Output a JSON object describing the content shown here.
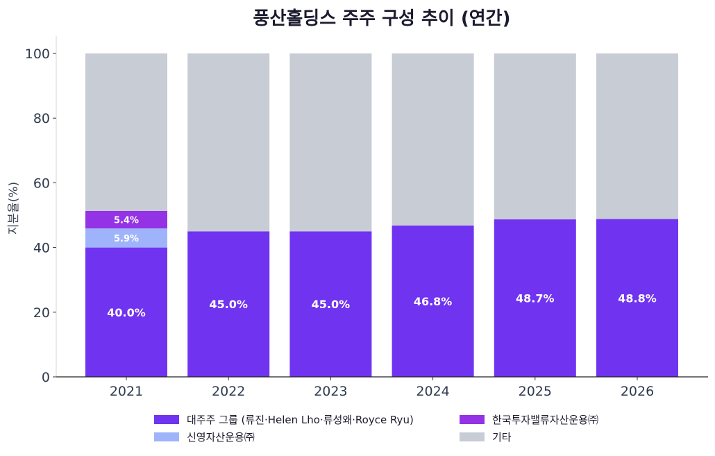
{
  "chart_data": {
    "type": "bar",
    "stacked": true,
    "title": "풍산홀딩스 주주 구성 추이 (연간)",
    "xlabel": "",
    "ylabel": "지분율(%)",
    "categories": [
      "2021",
      "2022",
      "2023",
      "2024",
      "2025",
      "2026"
    ],
    "ylim": [
      0,
      100
    ],
    "yticks": [
      0,
      20,
      40,
      60,
      80,
      100
    ],
    "grid": false,
    "legend_position": "bottom",
    "series": [
      {
        "name": "대주주 그룹 (류진·Helen Lho·류성왜·Royce Ryu)",
        "color": "#7033f0",
        "values": [
          40.0,
          45.0,
          45.0,
          46.8,
          48.7,
          48.8
        ],
        "labels": [
          "40.0%",
          "45.0%",
          "45.0%",
          "46.8%",
          "48.7%",
          "48.8%"
        ]
      },
      {
        "name": "신영자산운용㈜",
        "color": "#9fb3fb",
        "values": [
          5.9,
          null,
          null,
          null,
          null,
          null
        ],
        "labels": [
          "5.9%",
          "",
          "",
          "",
          "",
          ""
        ]
      },
      {
        "name": "한국투자밸류자산운용㈜",
        "color": "#9432e6",
        "values": [
          5.4,
          null,
          null,
          null,
          null,
          null
        ],
        "labels": [
          "5.4%",
          "",
          "",
          "",
          "",
          ""
        ]
      },
      {
        "name": "기타",
        "color": "#c8ccd5",
        "values": [
          48.7,
          55.0,
          55.0,
          53.2,
          51.3,
          51.2
        ],
        "labels": [
          "",
          "",
          "",
          "",
          "",
          ""
        ]
      }
    ],
    "legend_order": [
      0,
      2,
      1,
      3
    ]
  }
}
